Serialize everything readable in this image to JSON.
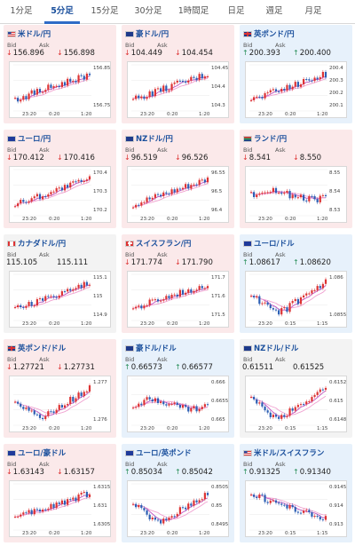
{
  "tabs": [
    "1分足",
    "5分足",
    "15分足",
    "30分足",
    "1時間足",
    "日足",
    "週足",
    "月足"
  ],
  "active_tab": 1,
  "labels": {
    "bid": "Bid",
    "ask": "Ask"
  },
  "colors": {
    "down_bg": "#fbe9ea",
    "up_bg": "#e7f1fb",
    "flat_bg": "#f3f3f3",
    "candle_up": "#d33",
    "candle_down": "#2d5fb4",
    "ma1": "#c050c0",
    "ma2": "#f0a0d0"
  },
  "cards": [
    {
      "title": "米ドル/円",
      "flag": "us",
      "dir": "down",
      "bid": "156.896",
      "ask": "156.898",
      "y_ticks": [
        "156.85",
        "156.75"
      ],
      "x_ticks": [
        "23:20",
        "0:20",
        "1:20"
      ],
      "chart_data": {
        "type": "candlestick",
        "trend": "up"
      }
    },
    {
      "title": "豪ドル/円",
      "flag": "au",
      "dir": "down",
      "bid": "104.449",
      "ask": "104.454",
      "y_ticks": [
        "104.45",
        "104.4",
        "104.3"
      ],
      "x_ticks": [
        "23:20",
        "0:20",
        "1:20"
      ],
      "chart_data": {
        "type": "candlestick",
        "trend": "up"
      }
    },
    {
      "title": "英ポンド/円",
      "flag": "gb",
      "dir": "up",
      "bid": "200.393",
      "ask": "200.400",
      "y_ticks": [
        "200.4",
        "200.3",
        "200.2",
        "200.1"
      ],
      "x_ticks": [
        "23:20",
        "0:20",
        "1:20"
      ],
      "chart_data": {
        "type": "candlestick",
        "trend": "up"
      }
    },
    {
      "title": "ユーロ/円",
      "flag": "eu",
      "dir": "down",
      "bid": "170.412",
      "ask": "170.416",
      "y_ticks": [
        "170.4",
        "170.3",
        "170.2"
      ],
      "x_ticks": [
        "23:20",
        "0:20",
        "1:20"
      ],
      "chart_data": {
        "type": "candlestick",
        "trend": "up"
      }
    },
    {
      "title": "NZドル/円",
      "flag": "nz",
      "dir": "down",
      "bid": "96.519",
      "ask": "96.526",
      "y_ticks": [
        "96.55",
        "96.5",
        "96.4"
      ],
      "x_ticks": [
        "23:20",
        "0:20",
        "1:20"
      ],
      "chart_data": {
        "type": "candlestick",
        "trend": "up"
      }
    },
    {
      "title": "ランド/円",
      "flag": "za",
      "dir": "down",
      "bid": "8.541",
      "ask": "8.550",
      "y_ticks": [
        "8.55",
        "8.54",
        "8.53"
      ],
      "x_ticks": [
        "23:20",
        "0:20",
        "1:20"
      ],
      "chart_data": {
        "type": "candlestick",
        "trend": "flat"
      }
    },
    {
      "title": "カナダドル/円",
      "flag": "ca",
      "dir": "flat",
      "bid": "115.105",
      "ask": "115.111",
      "y_ticks": [
        "115.1",
        "115",
        "114.9"
      ],
      "x_ticks": [
        "23:20",
        "0:20",
        "1:20"
      ],
      "chart_data": {
        "type": "candlestick",
        "trend": "up"
      }
    },
    {
      "title": "スイスフラン/円",
      "flag": "ch",
      "dir": "down",
      "bid": "171.774",
      "ask": "171.790",
      "y_ticks": [
        "171.7",
        "171.6",
        "171.5"
      ],
      "x_ticks": [
        "23:20",
        "0:20",
        "1:20"
      ],
      "chart_data": {
        "type": "candlestick",
        "trend": "up"
      }
    },
    {
      "title": "ユーロ/ドル",
      "flag": "eu",
      "dir": "up",
      "bid": "1.08617",
      "ask": "1.08620",
      "y_ticks": [
        "1.086",
        "1.0855"
      ],
      "x_ticks": [
        "23:20",
        "0:15",
        "1:15"
      ],
      "chart_data": {
        "type": "candlestick",
        "trend": "vee"
      }
    },
    {
      "title": "英ポンド/ドル",
      "flag": "gb",
      "dir": "down",
      "bid": "1.27721",
      "ask": "1.27731",
      "y_ticks": [
        "1.277",
        "1.276"
      ],
      "x_ticks": [
        "23:20",
        "0:20",
        "1:20"
      ],
      "chart_data": {
        "type": "candlestick",
        "trend": "vee"
      }
    },
    {
      "title": "豪ドル/ドル",
      "flag": "au",
      "dir": "up",
      "bid": "0.66573",
      "ask": "0.66577",
      "y_ticks": [
        "0.666",
        "0.6655",
        "0.665"
      ],
      "x_ticks": [
        "23:20",
        "0:20",
        "1:20"
      ],
      "chart_data": {
        "type": "candlestick",
        "trend": "flat"
      }
    },
    {
      "title": "NZドル/ドル",
      "flag": "nz",
      "dir": "flat",
      "bid": "0.61511",
      "ask": "0.61525",
      "y_ticks": [
        "0.6152",
        "0.615",
        "0.6148"
      ],
      "x_ticks": [
        "23:20",
        "0:15",
        "1:15"
      ],
      "chart_data": {
        "type": "candlestick",
        "trend": "vee"
      }
    },
    {
      "title": "ユーロ/豪ドル",
      "flag": "eu",
      "dir": "down",
      "bid": "1.63143",
      "ask": "1.63157",
      "y_ticks": [
        "1.6315",
        "1.631",
        "1.6305"
      ],
      "x_ticks": [
        "23:20",
        "0:20",
        "1:20"
      ],
      "chart_data": {
        "type": "candlestick",
        "trend": "up"
      }
    },
    {
      "title": "ユーロ/英ポンド",
      "flag": "eu",
      "dir": "up",
      "bid": "0.85034",
      "ask": "0.85042",
      "y_ticks": [
        "0.8505",
        "0.85",
        "0.8495"
      ],
      "x_ticks": [
        "23:20",
        "0:20",
        "1:20"
      ],
      "chart_data": {
        "type": "candlestick",
        "trend": "vee"
      }
    },
    {
      "title": "米ドル/スイスフラン",
      "flag": "us",
      "dir": "up",
      "bid": "0.91325",
      "ask": "0.91340",
      "y_ticks": [
        "0.9145",
        "0.914",
        "0.913"
      ],
      "x_ticks": [
        "23:20",
        "0:15",
        "1:15"
      ],
      "chart_data": {
        "type": "candlestick",
        "trend": "down"
      }
    }
  ]
}
